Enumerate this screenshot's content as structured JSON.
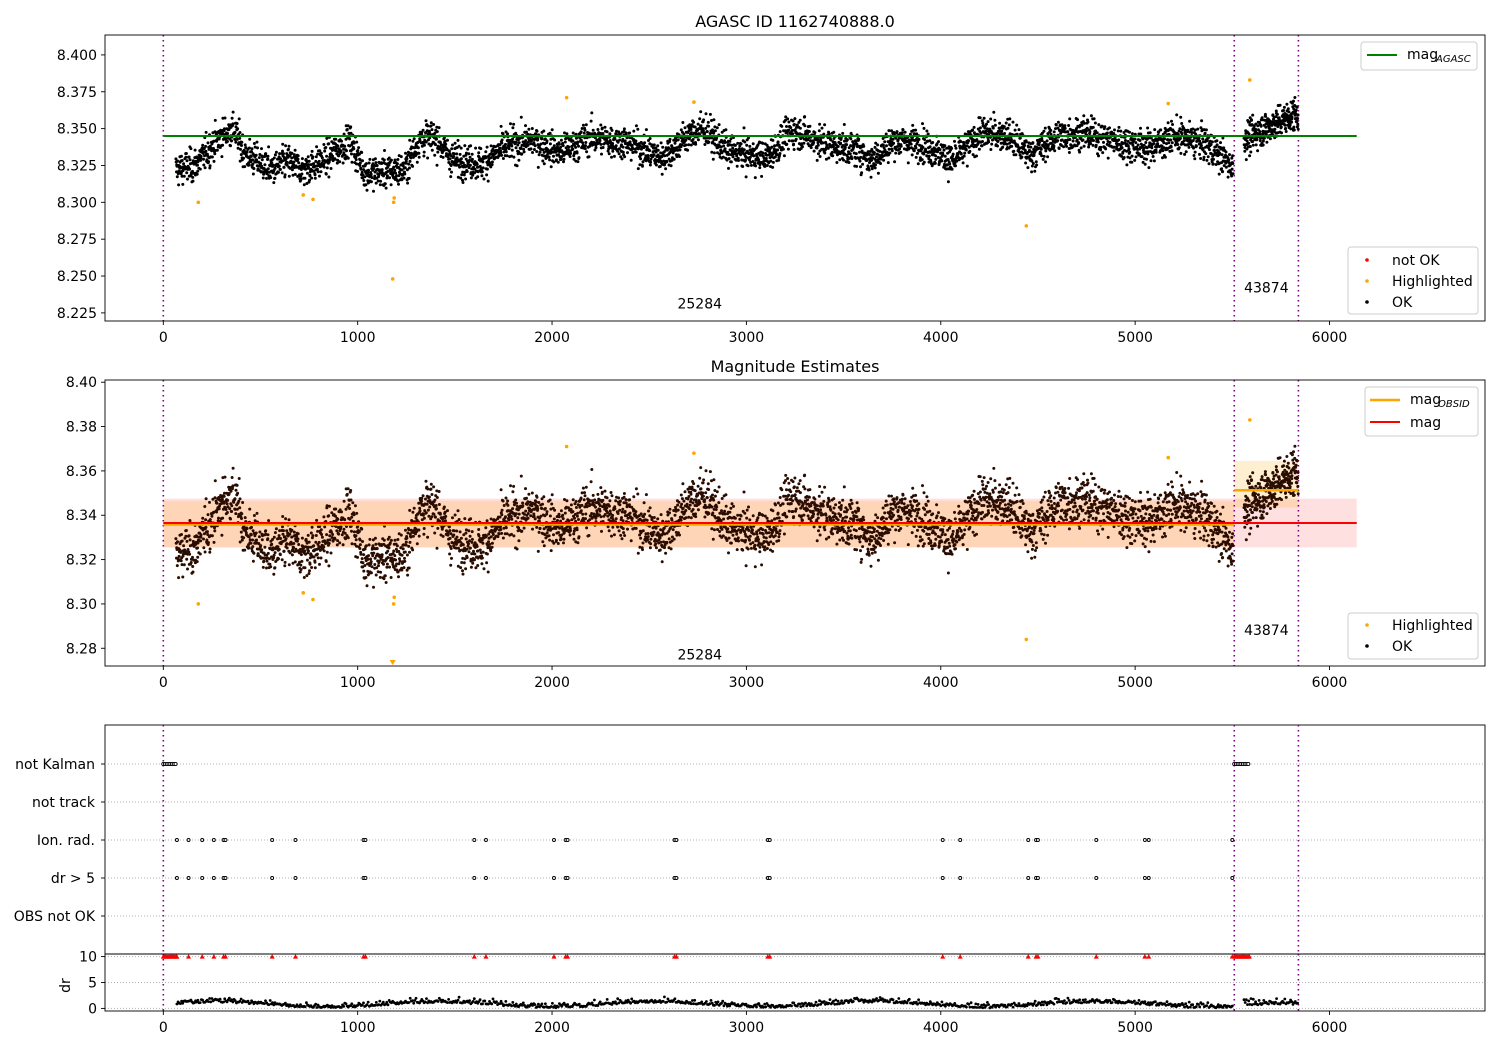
{
  "chart_data": [
    {
      "id": "p1",
      "type": "scatter",
      "title": "AGASC ID 1162740888.0",
      "xlabel": "",
      "ylabel": "",
      "xlim": [
        -300,
        6800
      ],
      "ylim": [
        8.2195,
        8.4135
      ],
      "xticks": [
        "0",
        "1000",
        "2000",
        "3000",
        "4000",
        "5000",
        "6000"
      ],
      "yticks": [
        "8.225",
        "8.250",
        "8.275",
        "8.300",
        "8.325",
        "8.350",
        "8.375",
        "8.400"
      ],
      "obsid_boundaries": [
        0,
        5510,
        5840
      ],
      "obsid_labels": [
        {
          "text": "25284",
          "x": 2760,
          "y": 8.228
        },
        {
          "text": "43874",
          "x": 5675,
          "y": 8.239
        }
      ],
      "mag_agasc": {
        "value": 8.345,
        "x_range": [
          0,
          6140
        ],
        "color": "#008000"
      },
      "legend_line": [
        {
          "label": "mag",
          "sub": "AGASC",
          "color": "#008000"
        }
      ],
      "legend_points": [
        {
          "label": "not OK",
          "color": "#ff0000"
        },
        {
          "label": "Highlighted",
          "color": "#ffa500"
        },
        {
          "label": "OK",
          "color": "#000000"
        }
      ],
      "highlighted_points": [
        [
          180,
          8.3
        ],
        [
          720,
          8.305
        ],
        [
          770,
          8.302
        ],
        [
          1180,
          8.248
        ],
        [
          1185,
          8.3
        ],
        [
          1188,
          8.303
        ],
        [
          2075,
          8.371
        ],
        [
          2730,
          8.368
        ],
        [
          4440,
          8.284
        ],
        [
          5170,
          8.367
        ],
        [
          5590,
          8.383
        ]
      ]
    },
    {
      "id": "p2",
      "type": "scatter",
      "title": "Magnitude Estimates",
      "xlabel": "",
      "ylabel": "",
      "xlim": [
        -300,
        6800
      ],
      "ylim": [
        8.272,
        8.401
      ],
      "xticks": [
        "0",
        "1000",
        "2000",
        "3000",
        "4000",
        "5000",
        "6000"
      ],
      "yticks": [
        "8.28",
        "8.30",
        "8.32",
        "8.34",
        "8.36",
        "8.38",
        "8.40"
      ],
      "obsid_boundaries": [
        0,
        5510,
        5840
      ],
      "obsid_labels": [
        {
          "text": "25284",
          "x": 2760,
          "y": 8.275
        },
        {
          "text": "43874",
          "x": 5675,
          "y": 8.286
        }
      ],
      "mag": {
        "value": 8.3365,
        "band": [
          8.3255,
          8.3475
        ],
        "x_range": [
          0,
          6140
        ],
        "color": "#ff0000"
      },
      "mag_obsid": [
        {
          "x_range": [
            0,
            5510
          ],
          "value": 8.3358,
          "band": [
            8.3255,
            8.3465
          ]
        },
        {
          "x_range": [
            5510,
            5840
          ],
          "value": 8.3513,
          "band": [
            8.3435,
            8.3645
          ]
        }
      ],
      "legend_line": [
        {
          "label": "mag",
          "sub": "OBSID",
          "color": "#ffa500"
        },
        {
          "label": "mag",
          "sub": "",
          "color": "#ff0000"
        }
      ],
      "legend_points": [
        {
          "label": "Highlighted",
          "color": "#ffa500"
        },
        {
          "label": "OK",
          "color": "#000000"
        }
      ],
      "highlighted_points": [
        [
          180,
          8.3
        ],
        [
          720,
          8.305
        ],
        [
          770,
          8.302
        ],
        [
          1180,
          8.274
        ],
        [
          1185,
          8.3
        ],
        [
          1188,
          8.303
        ],
        [
          2075,
          8.371
        ],
        [
          2730,
          8.368
        ],
        [
          4440,
          8.284
        ],
        [
          5170,
          8.366
        ],
        [
          5590,
          8.383
        ]
      ]
    },
    {
      "id": "p3",
      "type": "scatter",
      "title": "",
      "xlabel": "",
      "ylabel": "",
      "xlim": [
        -300,
        6800
      ],
      "categories": [
        "not Kalman",
        "not track",
        "Ion. rad.",
        "dr > 5",
        "OBS not OK"
      ],
      "obsid_boundaries": [
        0,
        5510,
        5840
      ],
      "flags": {
        "not Kalman": [
          [
            0,
            70
          ],
          [
            5510,
            5590
          ]
        ],
        "ion_times": [
          70,
          130,
          200,
          260,
          310,
          320,
          560,
          680,
          1030,
          1040,
          1600,
          1660,
          2010,
          2070,
          2080,
          2630,
          2640,
          3110,
          3120,
          4010,
          4100,
          4450,
          4490,
          4500,
          4800,
          5050,
          5070,
          5500
        ]
      }
    },
    {
      "id": "p4",
      "type": "scatter",
      "title": "",
      "xlabel": "",
      "ylabel": "dr",
      "xlim": [
        -300,
        6800
      ],
      "ylim": [
        -0.5,
        10.5
      ],
      "xticks": [
        "0",
        "1000",
        "2000",
        "3000",
        "4000",
        "5000",
        "6000"
      ],
      "yticks": [
        "0",
        "5",
        "10"
      ],
      "obsid_boundaries": [
        0,
        5510,
        5840
      ],
      "clip_value": 10
    }
  ]
}
